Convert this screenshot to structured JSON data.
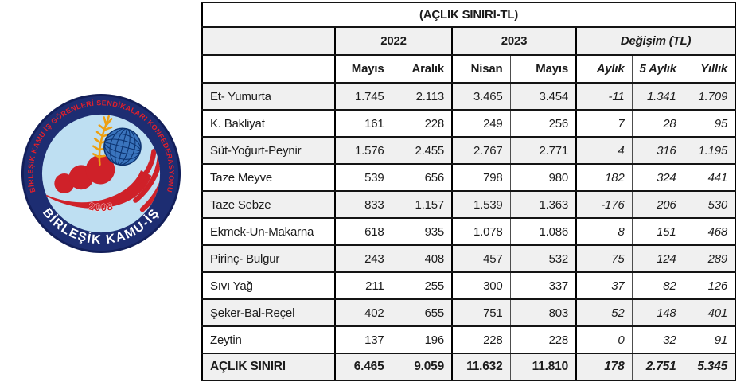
{
  "logo": {
    "outer_text": "BİRLEŞİK KAMU İŞ GÖRENLERİ SENDİKALARI KONFEDERASYONU",
    "bottom_text": "BİRLEŞİK KAMU-İŞ",
    "year": "2008",
    "colors": {
      "ring_navy": "#1d2d72",
      "ring_edge": "#131f5a",
      "inner_blue": "#bedff2",
      "red": "#cf2129",
      "arc_text_red": "#e1202b",
      "globe_blue": "#3a74bd",
      "globe_grid": "#0c3370",
      "gold": "#eda013",
      "bottom_text_white": "#ffffff"
    }
  },
  "table": {
    "title": "(AÇLIK SINIRI-TL)",
    "col_groups": [
      {
        "label": "2022",
        "span": 2
      },
      {
        "label": "2023",
        "span": 2
      },
      {
        "label": "Değişim (TL)",
        "span": 3
      }
    ],
    "columns": [
      "Mayıs",
      "Aralık",
      "Nisan",
      "Mayıs",
      "Aylık",
      "5 Aylık",
      "Yıllık"
    ],
    "rows": [
      {
        "label": "Et- Yumurta",
        "values": [
          "1.745",
          "2.113",
          "3.465",
          "3.454",
          "-11",
          "1.341",
          "1.709"
        ]
      },
      {
        "label": "K. Bakliyat",
        "values": [
          "161",
          "228",
          "249",
          "256",
          "7",
          "28",
          "95"
        ]
      },
      {
        "label": "Süt-Yoğurt-Peynir",
        "values": [
          "1.576",
          "2.455",
          "2.767",
          "2.771",
          "4",
          "316",
          "1.195"
        ]
      },
      {
        "label": "Taze Meyve",
        "values": [
          "539",
          "656",
          "798",
          "980",
          "182",
          "324",
          "441"
        ]
      },
      {
        "label": "Taze Sebze",
        "values": [
          "833",
          "1.157",
          "1.539",
          "1.363",
          "-176",
          "206",
          "530"
        ]
      },
      {
        "label": "Ekmek-Un-Makarna",
        "values": [
          "618",
          "935",
          "1.078",
          "1.086",
          "8",
          "151",
          "468"
        ]
      },
      {
        "label": "Pirinç- Bulgur",
        "values": [
          "243",
          "408",
          "457",
          "532",
          "75",
          "124",
          "289"
        ]
      },
      {
        "label": "Sıvı Yağ",
        "values": [
          "211",
          "255",
          "300",
          "337",
          "37",
          "82",
          "126"
        ]
      },
      {
        "label": "Şeker-Bal-Reçel",
        "values": [
          "402",
          "655",
          "751",
          "803",
          "52",
          "148",
          "401"
        ]
      },
      {
        "label": "Zeytin",
        "values": [
          "137",
          "196",
          "228",
          "228",
          "0",
          "32",
          "91"
        ]
      }
    ],
    "total_row": {
      "label": "AÇLIK SINIRI",
      "values": [
        "6.465",
        "9.059",
        "11.632",
        "11.810",
        "178",
        "2.751",
        "5.345"
      ]
    },
    "zebra_color": "#f0f0f0"
  }
}
